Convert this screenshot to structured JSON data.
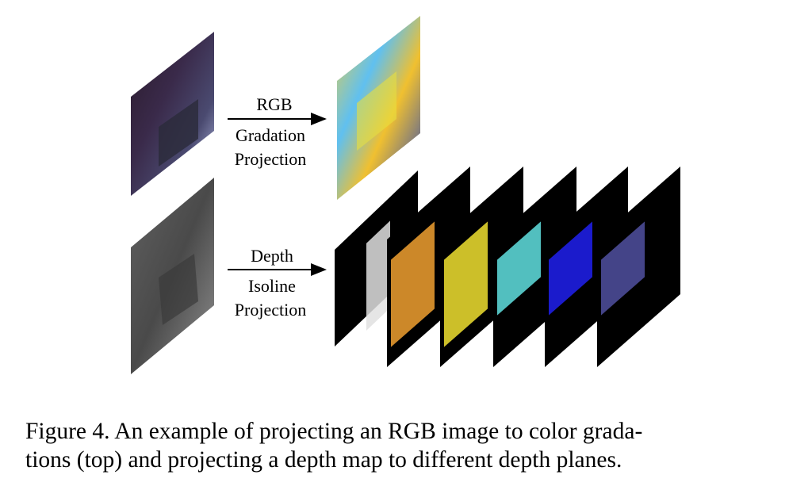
{
  "figure": {
    "top_row": {
      "label_line1": "RGB",
      "label_line2": "Gradation",
      "label_line3": "Projection"
    },
    "bottom_row": {
      "label_line1": "Depth",
      "label_line2": "Isoline",
      "label_line3": "Projection"
    },
    "depth_plane_colors": [
      "#e0e0e0",
      "#f0a030",
      "#f0e030",
      "#60e0e0",
      "#2020f0",
      "#5050a0"
    ]
  },
  "caption": {
    "line1": "Figure 4.  An example of projecting an RGB image to color grada-",
    "line2": "tions (top) and projecting a depth map to different depth planes."
  }
}
